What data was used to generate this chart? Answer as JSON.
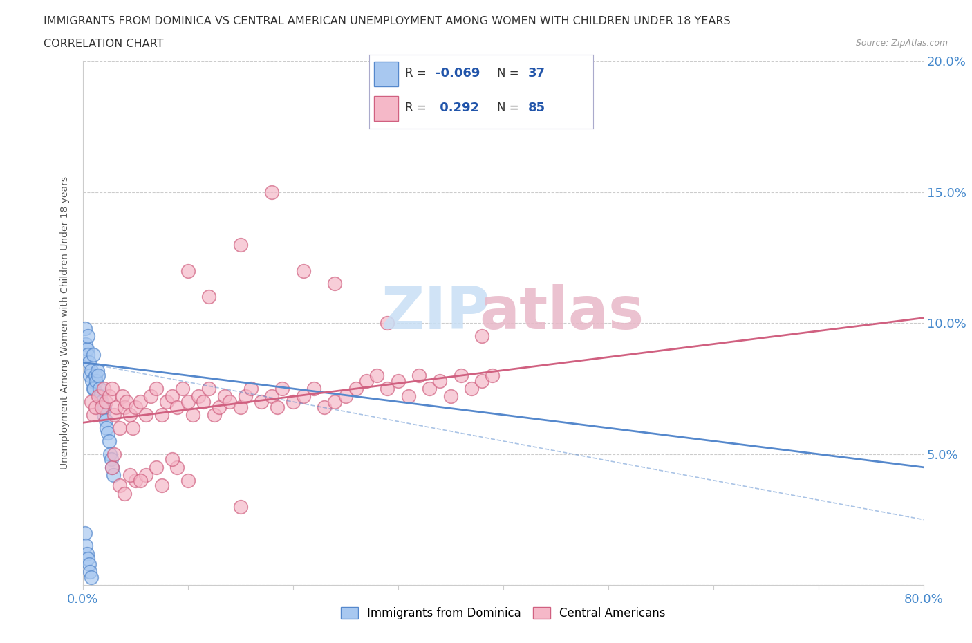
{
  "title_line1": "IMMIGRANTS FROM DOMINICA VS CENTRAL AMERICAN UNEMPLOYMENT AMONG WOMEN WITH CHILDREN UNDER 18 YEARS",
  "title_line2": "CORRELATION CHART",
  "source_text": "Source: ZipAtlas.com",
  "ylabel": "Unemployment Among Women with Children Under 18 years",
  "x_min": 0.0,
  "x_max": 0.8,
  "y_min": 0.0,
  "y_max": 0.2,
  "x_ticks": [
    0.0,
    0.1,
    0.2,
    0.3,
    0.4,
    0.5,
    0.6,
    0.7,
    0.8
  ],
  "y_ticks": [
    0.0,
    0.05,
    0.1,
    0.15,
    0.2
  ],
  "dominica_color": "#a8c8f0",
  "dominica_edge": "#5588cc",
  "central_color": "#f5b8c8",
  "central_edge": "#d06080",
  "dominica_R": -0.069,
  "dominica_N": 37,
  "central_R": 0.292,
  "central_N": 85,
  "legend_label1": "Immigrants from Dominica",
  "legend_label2": "Central Americans",
  "tick_color": "#4488cc",
  "legend_r_color": "#2255aa",
  "bg_color": "#ffffff",
  "title_color": "#333333",
  "axis_label_color": "#555555",
  "grid_color": "#cccccc",
  "watermark_zip_color": "#c8dff5",
  "watermark_atlas_color": "#e8b8c8",
  "dominica_scatter_x": [
    0.002,
    0.003,
    0.004,
    0.005,
    0.005,
    0.006,
    0.007,
    0.008,
    0.009,
    0.01,
    0.01,
    0.011,
    0.012,
    0.013,
    0.014,
    0.015,
    0.016,
    0.017,
    0.018,
    0.019,
    0.02,
    0.021,
    0.022,
    0.023,
    0.024,
    0.025,
    0.026,
    0.027,
    0.028,
    0.029,
    0.002,
    0.003,
    0.004,
    0.005,
    0.006,
    0.007,
    0.008
  ],
  "dominica_scatter_y": [
    0.098,
    0.092,
    0.09,
    0.088,
    0.095,
    0.085,
    0.08,
    0.082,
    0.078,
    0.088,
    0.075,
    0.075,
    0.08,
    0.078,
    0.082,
    0.08,
    0.075,
    0.072,
    0.07,
    0.068,
    0.065,
    0.068,
    0.063,
    0.06,
    0.058,
    0.055,
    0.05,
    0.048,
    0.045,
    0.042,
    0.02,
    0.015,
    0.012,
    0.01,
    0.008,
    0.005,
    0.003
  ],
  "central_scatter_x": [
    0.008,
    0.01,
    0.012,
    0.015,
    0.018,
    0.02,
    0.022,
    0.025,
    0.028,
    0.03,
    0.032,
    0.035,
    0.038,
    0.04,
    0.042,
    0.045,
    0.048,
    0.05,
    0.055,
    0.06,
    0.065,
    0.07,
    0.075,
    0.08,
    0.085,
    0.09,
    0.095,
    0.1,
    0.105,
    0.11,
    0.115,
    0.12,
    0.125,
    0.13,
    0.135,
    0.14,
    0.15,
    0.155,
    0.16,
    0.17,
    0.18,
    0.185,
    0.19,
    0.2,
    0.21,
    0.22,
    0.23,
    0.24,
    0.25,
    0.26,
    0.27,
    0.28,
    0.29,
    0.3,
    0.31,
    0.32,
    0.33,
    0.34,
    0.35,
    0.36,
    0.37,
    0.38,
    0.39,
    0.1,
    0.12,
    0.15,
    0.18,
    0.21,
    0.24,
    0.29,
    0.028,
    0.035,
    0.04,
    0.05,
    0.06,
    0.075,
    0.09,
    0.1,
    0.15,
    0.38,
    0.03,
    0.045,
    0.055,
    0.07,
    0.085
  ],
  "central_scatter_y": [
    0.07,
    0.065,
    0.068,
    0.072,
    0.068,
    0.075,
    0.07,
    0.072,
    0.075,
    0.065,
    0.068,
    0.06,
    0.072,
    0.068,
    0.07,
    0.065,
    0.06,
    0.068,
    0.07,
    0.065,
    0.072,
    0.075,
    0.065,
    0.07,
    0.072,
    0.068,
    0.075,
    0.07,
    0.065,
    0.072,
    0.07,
    0.075,
    0.065,
    0.068,
    0.072,
    0.07,
    0.068,
    0.072,
    0.075,
    0.07,
    0.072,
    0.068,
    0.075,
    0.07,
    0.072,
    0.075,
    0.068,
    0.07,
    0.072,
    0.075,
    0.078,
    0.08,
    0.075,
    0.078,
    0.072,
    0.08,
    0.075,
    0.078,
    0.072,
    0.08,
    0.075,
    0.078,
    0.08,
    0.12,
    0.11,
    0.13,
    0.15,
    0.12,
    0.115,
    0.1,
    0.045,
    0.038,
    0.035,
    0.04,
    0.042,
    0.038,
    0.045,
    0.04,
    0.03,
    0.095,
    0.05,
    0.042,
    0.04,
    0.045,
    0.048
  ],
  "dominica_trend_x": [
    0.0,
    0.8
  ],
  "dominica_trend_y": [
    0.085,
    0.045
  ],
  "central_trend_x": [
    0.0,
    0.8
  ],
  "central_trend_y": [
    0.062,
    0.102
  ]
}
